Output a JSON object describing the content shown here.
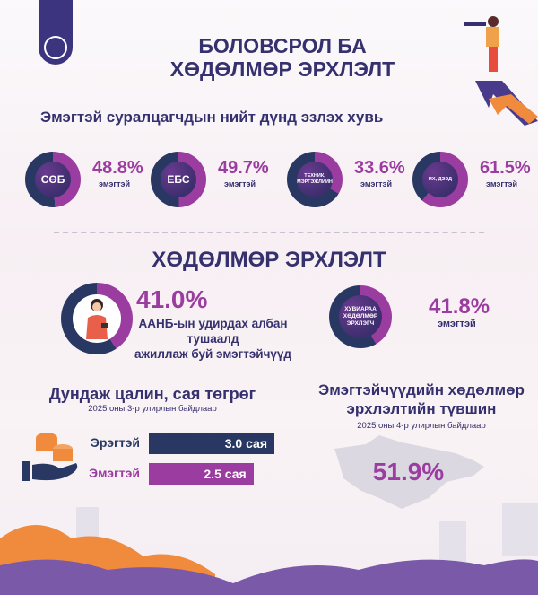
{
  "header": {
    "title_line1": "БОЛОВСРОЛ БА",
    "title_line2": "ХӨДӨЛМӨР ЭРХЛЭЛТ"
  },
  "colors": {
    "navy": "#283863",
    "purple": "#9b3da0",
    "orange": "#f08a3c",
    "title": "#35306e"
  },
  "education": {
    "subtitle": "Эмэгтэй суралцагчдын нийт дүнд эзлэх хувь",
    "items": [
      {
        "label": "СӨБ",
        "percent": "48.8%",
        "value": 48.8,
        "caption": "эмэгтэй"
      },
      {
        "label": "ЕБС",
        "percent": "49.7%",
        "value": 49.7,
        "caption": "эмэгтэй"
      },
      {
        "label": "ТЕХНИК, МЭРГЭЖЛИЙН",
        "percent": "33.6%",
        "value": 33.6,
        "caption": "эмэгтэй"
      },
      {
        "label": "ИХ, ДЭЭД",
        "percent": "61.5%",
        "value": 61.5,
        "caption": "эмэгтэй"
      }
    ]
  },
  "employment": {
    "title": "ХӨДӨЛМӨР ЭРХЛЭЛТ",
    "managers": {
      "percent": "41.0%",
      "value": 41.0,
      "desc_line1": "ААНБ-ын удирдах албан тушаалд",
      "desc_line2": "ажиллаж буй эмэгтэйчүүд",
      "icon": "businesswoman-icon"
    },
    "self_employed": {
      "label": "ХУВИАРАА ХӨДӨЛМӨР ЭРХЛЭГЧ",
      "percent": "41.8%",
      "value": 41.8,
      "caption": "эмэгтэй"
    }
  },
  "salary": {
    "title": "Дундаж цалин, сая төгрөг",
    "subtitle": "2025 оны 3-р улирлын байдлаар",
    "icon": "coins-hand-icon",
    "rows": [
      {
        "label": "Эрэгтэй",
        "text": "3.0 сая",
        "value": 3.0
      },
      {
        "label": "Эмэгтэй",
        "text": "2.5 сая",
        "value": 2.5
      }
    ]
  },
  "participation": {
    "title_line1": "Эмэгтэйчүүдийн хөдөлмөр",
    "title_line2": "эрхлэлтийн түвшин",
    "subtitle": "2025 оны 4-р улирлын байдлаар",
    "percent": "51.9%",
    "icon": "mongolia-map-icon"
  }
}
